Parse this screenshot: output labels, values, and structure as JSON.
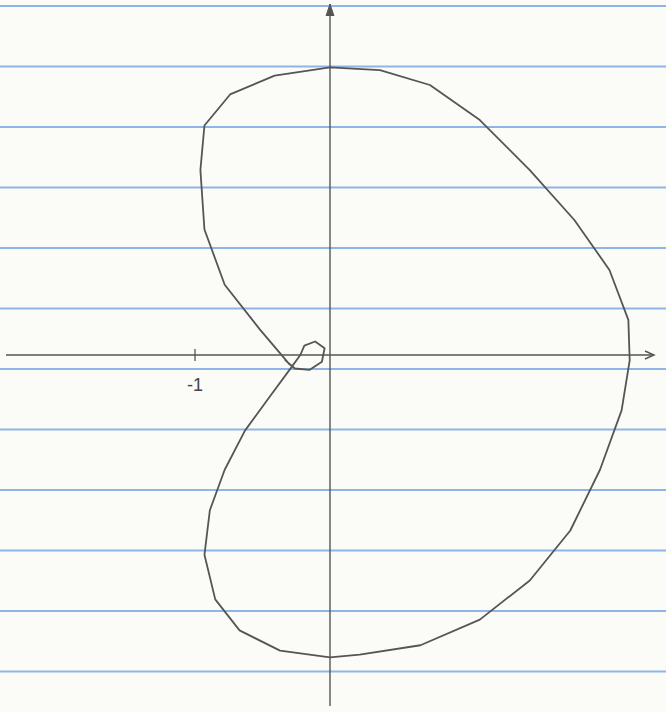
{
  "chart_data": {
    "type": "line",
    "x": [
      -0.3,
      -0.52,
      -0.78,
      -0.93,
      -0.96,
      -0.93,
      -0.74,
      -0.41,
      0,
      0.37,
      0.74,
      1.11,
      1.48,
      1.81,
      2.07,
      2.21,
      2.22,
      2.16,
      2.0,
      1.78,
      1.48,
      1.11,
      0.67,
      0.22,
      0,
      -0.37,
      -0.67,
      -0.85,
      -0.93,
      -0.89,
      -0.78,
      -0.63,
      -0.44,
      -0.3,
      -0.22,
      -0.19,
      -0.11,
      -0.04,
      -0.06,
      -0.15,
      -0.26,
      -0.33
    ],
    "values": [
      -0.07,
      0.19,
      0.52,
      0.93,
      1.37,
      1.7,
      1.93,
      2.07,
      2.13,
      2.11,
      2.0,
      1.74,
      1.37,
      1.0,
      0.63,
      0.26,
      -0.04,
      -0.41,
      -0.85,
      -1.3,
      -1.67,
      -1.96,
      -2.15,
      -2.22,
      -2.24,
      -2.19,
      -2.04,
      -1.81,
      -1.48,
      -1.15,
      -0.85,
      -0.56,
      -0.3,
      -0.11,
      0,
      0.07,
      0.1,
      0.05,
      -0.05,
      -0.11,
      -0.1,
      -0.04
    ],
    "color": "#555555",
    "xlim": [
      -2.4,
      2.4
    ],
    "ylim": [
      -2.6,
      2.6
    ],
    "xticks": [
      -1
    ],
    "yticks": [],
    "tick_labels": "x",
    "grid": false
  }
}
